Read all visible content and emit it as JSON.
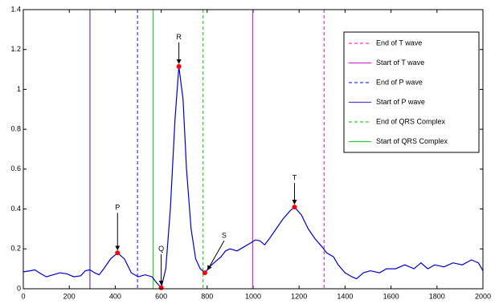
{
  "chart_data": {
    "type": "line",
    "x": [
      0,
      30,
      50,
      70,
      100,
      130,
      160,
      190,
      220,
      250,
      270,
      290,
      310,
      330,
      350,
      380,
      410,
      440,
      470,
      500,
      530,
      560,
      580,
      600,
      620,
      640,
      660,
      677,
      695,
      710,
      730,
      750,
      770,
      790,
      810,
      840,
      860,
      880,
      900,
      930,
      960,
      990,
      1010,
      1030,
      1050,
      1070,
      1100,
      1130,
      1160,
      1180,
      1210,
      1240,
      1270,
      1300,
      1320,
      1350,
      1370,
      1400,
      1430,
      1450,
      1480,
      1510,
      1550,
      1580,
      1620,
      1660,
      1700,
      1730,
      1760,
      1790,
      1830,
      1870,
      1910,
      1950,
      1980,
      2000
    ],
    "series": [
      {
        "color": "#0000cc",
        "values": [
          0.085,
          0.09,
          0.095,
          0.08,
          0.06,
          0.07,
          0.08,
          0.075,
          0.06,
          0.065,
          0.09,
          0.095,
          0.08,
          0.07,
          0.1,
          0.15,
          0.18,
          0.15,
          0.08,
          0.06,
          0.07,
          0.06,
          0.03,
          0.005,
          0.1,
          0.4,
          0.85,
          1.115,
          0.95,
          0.6,
          0.3,
          0.15,
          0.1,
          0.08,
          0.11,
          0.14,
          0.16,
          0.19,
          0.2,
          0.19,
          0.21,
          0.23,
          0.245,
          0.24,
          0.22,
          0.25,
          0.3,
          0.35,
          0.39,
          0.41,
          0.37,
          0.3,
          0.25,
          0.21,
          0.18,
          0.16,
          0.12,
          0.08,
          0.06,
          0.05,
          0.08,
          0.09,
          0.08,
          0.1,
          0.1,
          0.12,
          0.1,
          0.13,
          0.1,
          0.12,
          0.11,
          0.13,
          0.12,
          0.145,
          0.13,
          0.09
        ]
      }
    ],
    "markers": [
      {
        "name": "End of T wave",
        "x": 1309,
        "color": "#ff33cc",
        "dashed": true
      },
      {
        "name": "Start of T wave",
        "x": 998,
        "color": "#cc33cc",
        "dashed": false
      },
      {
        "name": "End of P wave",
        "x": 497,
        "color": "#3333ff",
        "dashed": true
      },
      {
        "name": "Start of P wave",
        "x": 290,
        "color": "#6633cc",
        "dashed": false
      },
      {
        "name": "End of QRS Complex",
        "x": 782,
        "color": "#33cc33",
        "dashed": true
      },
      {
        "name": "Start of QRS Complex",
        "x": 565,
        "color": "#33cc33",
        "dashed": false
      }
    ],
    "annotations": [
      {
        "label": "P",
        "x": 410,
        "y": 0.18
      },
      {
        "label": "Q",
        "x": 600,
        "y": 0.005
      },
      {
        "label": "R",
        "x": 677,
        "y": 1.115
      },
      {
        "label": "S",
        "x": 790,
        "y": 0.08
      },
      {
        "label": "T",
        "x": 1180,
        "y": 0.41
      }
    ],
    "point_color": "#ff0000",
    "xlim": [
      0,
      2000
    ],
    "xticks": [
      0,
      200,
      400,
      600,
      800,
      1000,
      1200,
      1400,
      1600,
      1800,
      2000
    ],
    "ylim": [
      0,
      1.4
    ],
    "yticks": [
      0,
      0.2,
      0.4,
      0.6,
      0.8,
      1,
      1.2,
      1.4
    ],
    "legend": "upper right"
  }
}
